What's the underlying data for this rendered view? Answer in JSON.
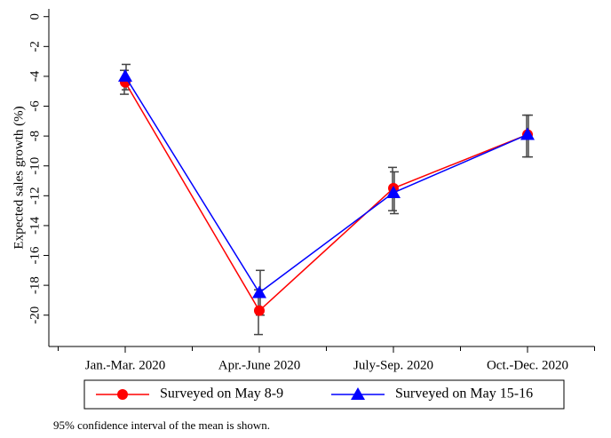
{
  "chart_data": {
    "type": "line",
    "y_label": "Expected sales growth (%)",
    "note": "95% confidence interval of the mean is shown.",
    "categories": [
      "Jan.-Mar. 2020",
      "Apr.-June 2020",
      "July-Sep. 2020",
      "Oct.-Dec. 2020"
    ],
    "series": [
      {
        "name": "Surveyed on May 8-9",
        "color": "#ff0000",
        "marker": "circle",
        "values": [
          -4.4,
          -19.7,
          -11.5,
          -7.9
        ],
        "ci_low": [
          -5.2,
          -21.3,
          -13.0,
          -9.4
        ],
        "ci_high": [
          -3.6,
          -18.3,
          -10.1,
          -6.6
        ]
      },
      {
        "name": "Surveyed on May 15-16",
        "color": "#0000ff",
        "marker": "triangle",
        "values": [
          -4.0,
          -18.5,
          -11.8,
          -7.9
        ],
        "ci_low": [
          -4.9,
          -20.0,
          -13.2,
          -9.4
        ],
        "ci_high": [
          -3.2,
          -17.0,
          -10.4,
          -6.6
        ]
      }
    ],
    "ylim": [
      -22.1,
      0.4
    ],
    "yticks": [
      0,
      -2,
      -4,
      -6,
      -8,
      -10,
      -12,
      -14,
      -16,
      -18,
      -20
    ],
    "legend": "bottom"
  }
}
